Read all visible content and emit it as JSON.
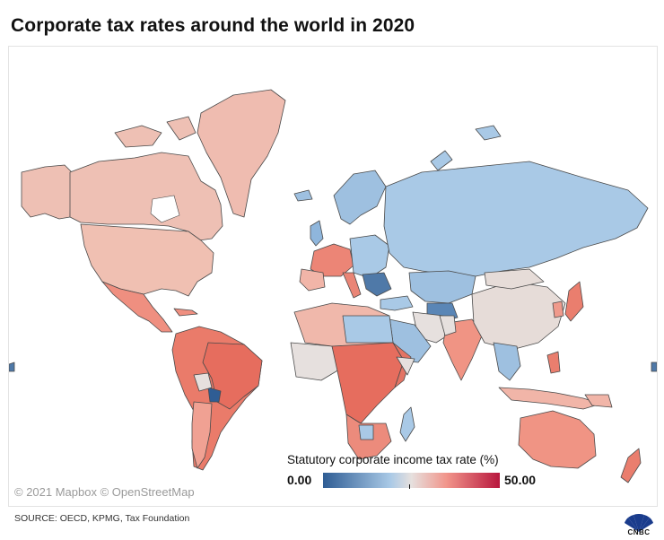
{
  "header": {
    "title": "Corporate tax rates around the world in 2020"
  },
  "map": {
    "type": "choropleth world map",
    "metric": "Statutory corporate income tax rate (%)",
    "attribution": "© 2021 Mapbox © OpenStreetMap",
    "colors": {
      "low": "#2f5d94",
      "mid_low": "#a9c9e6",
      "mid": "#e6e0de",
      "mid_high": "#f1948a",
      "high": "#b8173e",
      "no_data_ocean": "#ffffff",
      "border": "#4a4a4a"
    },
    "legend": {
      "title": "Statutory corporate income tax rate (%)",
      "min": "0.00",
      "max": "50.00",
      "gradient": [
        "#2f5d94",
        "#a9c9e6",
        "#e6e0de",
        "#f1948a",
        "#b8173e"
      ]
    }
  },
  "footer": {
    "source": "SOURCE: OECD, KPMG, Tax Foundation",
    "logo": "cnbc-peacock-icon",
    "logo_text": "CNBC"
  }
}
